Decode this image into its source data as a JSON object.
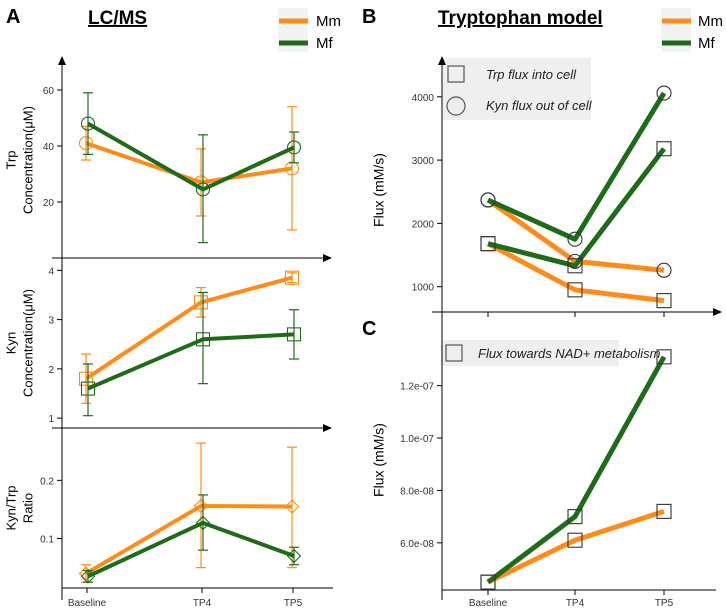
{
  "colors": {
    "Mm": "#ff8c1a",
    "Mf": "#1f6b1a"
  },
  "panels": {
    "A": {
      "letter": "A",
      "title": "LC/MS"
    },
    "B": {
      "letter": "B",
      "title": "Tryptophan model"
    },
    "C": {
      "letter": "C"
    }
  },
  "legend": {
    "mm": "Mm",
    "mf": "Mf"
  },
  "chart_data": [
    {
      "id": "A1",
      "type": "line",
      "title": "LC/MS",
      "ylabel": "Trp Concentration(μM)",
      "ylabel_lines": [
        "Trp",
        "Concentration(μM)"
      ],
      "categories": [
        "Baseline",
        "TP4",
        "TP5"
      ],
      "ylim": [
        0,
        70
      ],
      "yticks": [
        20,
        40,
        60
      ],
      "ytick_labels": [
        "20",
        "40",
        "60"
      ],
      "marker": "circle",
      "series": [
        {
          "name": "Mm",
          "values": [
            41,
            27,
            32
          ],
          "err_low": [
            35,
            15,
            10
          ],
          "err_high": [
            47,
            39,
            54
          ]
        },
        {
          "name": "Mf",
          "values": [
            48,
            24.5,
            39.5
          ],
          "err_low": [
            37,
            5.5,
            34
          ],
          "err_high": [
            59,
            44,
            45
          ]
        }
      ]
    },
    {
      "id": "A2",
      "type": "line",
      "ylabel": "Kyn Concentration(μM)",
      "ylabel_lines": [
        "Kyn",
        "Concentration(μM)"
      ],
      "categories": [
        "Baseline",
        "TP4",
        "TP5"
      ],
      "ylim": [
        0.8,
        4.25
      ],
      "yticks": [
        1,
        2,
        3,
        4
      ],
      "ytick_labels": [
        "1",
        "2",
        "3",
        "4"
      ],
      "marker": "square",
      "series": [
        {
          "name": "Mm",
          "values": [
            1.8,
            3.35,
            3.85
          ],
          "err_low": [
            1.3,
            3.05,
            3.75
          ],
          "err_high": [
            2.3,
            3.65,
            3.95
          ]
        },
        {
          "name": "Mf",
          "values": [
            1.6,
            2.6,
            2.7
          ],
          "err_low": [
            1.05,
            1.7,
            2.2
          ],
          "err_high": [
            2.1,
            3.55,
            3.2
          ]
        }
      ]
    },
    {
      "id": "A3",
      "type": "line",
      "ylabel": "Kyn/Trp Ratio",
      "ylabel_lines": [
        "Kyn/Trp",
        "Ratio"
      ],
      "categories": [
        "Baseline",
        "TP4",
        "TP5"
      ],
      "ylim": [
        0.015,
        0.29
      ],
      "yticks": [
        0.1,
        0.2
      ],
      "ytick_labels": [
        "0.1",
        "0.2"
      ],
      "marker": "diamond",
      "series": [
        {
          "name": "Mm",
          "values": [
            0.04,
            0.156,
            0.155
          ],
          "err_low": [
            0.025,
            0.05,
            0.05
          ],
          "err_high": [
            0.055,
            0.264,
            0.257
          ]
        },
        {
          "name": "Mf",
          "values": [
            0.035,
            0.127,
            0.07
          ],
          "err_low": [
            0.025,
            0.08,
            0.055
          ],
          "err_high": [
            0.045,
            0.175,
            0.085
          ]
        }
      ]
    },
    {
      "id": "B",
      "type": "line",
      "title": "Tryptophan model",
      "ylabel": "Flux (mM/s)",
      "categories": [
        "Baseline",
        "TP4",
        "TP5"
      ],
      "ylim": [
        600,
        4550
      ],
      "yticks": [
        1000,
        2000,
        3000,
        4000
      ],
      "ytick_labels": [
        "1000",
        "2000",
        "3000",
        "4000"
      ],
      "annotations": [
        "Trp flux into cell",
        "Kyn flux out of cell"
      ],
      "series": [
        {
          "name": "Mm",
          "measure": "Trp flux into cell",
          "marker": "square",
          "values": [
            1680,
            950,
            780
          ]
        },
        {
          "name": "Mm",
          "measure": "Kyn flux out of cell",
          "marker": "circle",
          "values": [
            2370,
            1400,
            1260
          ]
        },
        {
          "name": "Mf",
          "measure": "Trp flux into cell",
          "marker": "square",
          "values": [
            1680,
            1330,
            3180
          ]
        },
        {
          "name": "Mf",
          "measure": "Kyn flux out of cell",
          "marker": "circle",
          "values": [
            2370,
            1750,
            4060
          ]
        }
      ]
    },
    {
      "id": "C",
      "type": "line",
      "ylabel": "Flux (mM/s)",
      "categories": [
        "Baseline",
        "TP4",
        "TP5"
      ],
      "xlabel_ticks": [
        "Baseline",
        "TP4",
        "TP5"
      ],
      "ylim": [
        4.2e-08,
        1.42e-07
      ],
      "yticks": [
        6e-08,
        8e-08,
        1e-07,
        1.2e-07
      ],
      "ytick_labels": [
        "6.0e-08",
        "8.0e-08",
        "1.0e-07",
        "1.2e-07"
      ],
      "annotations": [
        "Flux towards NAD+ metabolism"
      ],
      "series": [
        {
          "name": "Mm",
          "marker": "square",
          "values": [
            4.5e-08,
            6.1e-08,
            7.2e-08
          ]
        },
        {
          "name": "Mf",
          "marker": "square",
          "values": [
            4.5e-08,
            7e-08,
            1.31e-07
          ]
        }
      ]
    }
  ],
  "x_tick_labels": [
    "Baseline",
    "TP4",
    "TP5"
  ]
}
